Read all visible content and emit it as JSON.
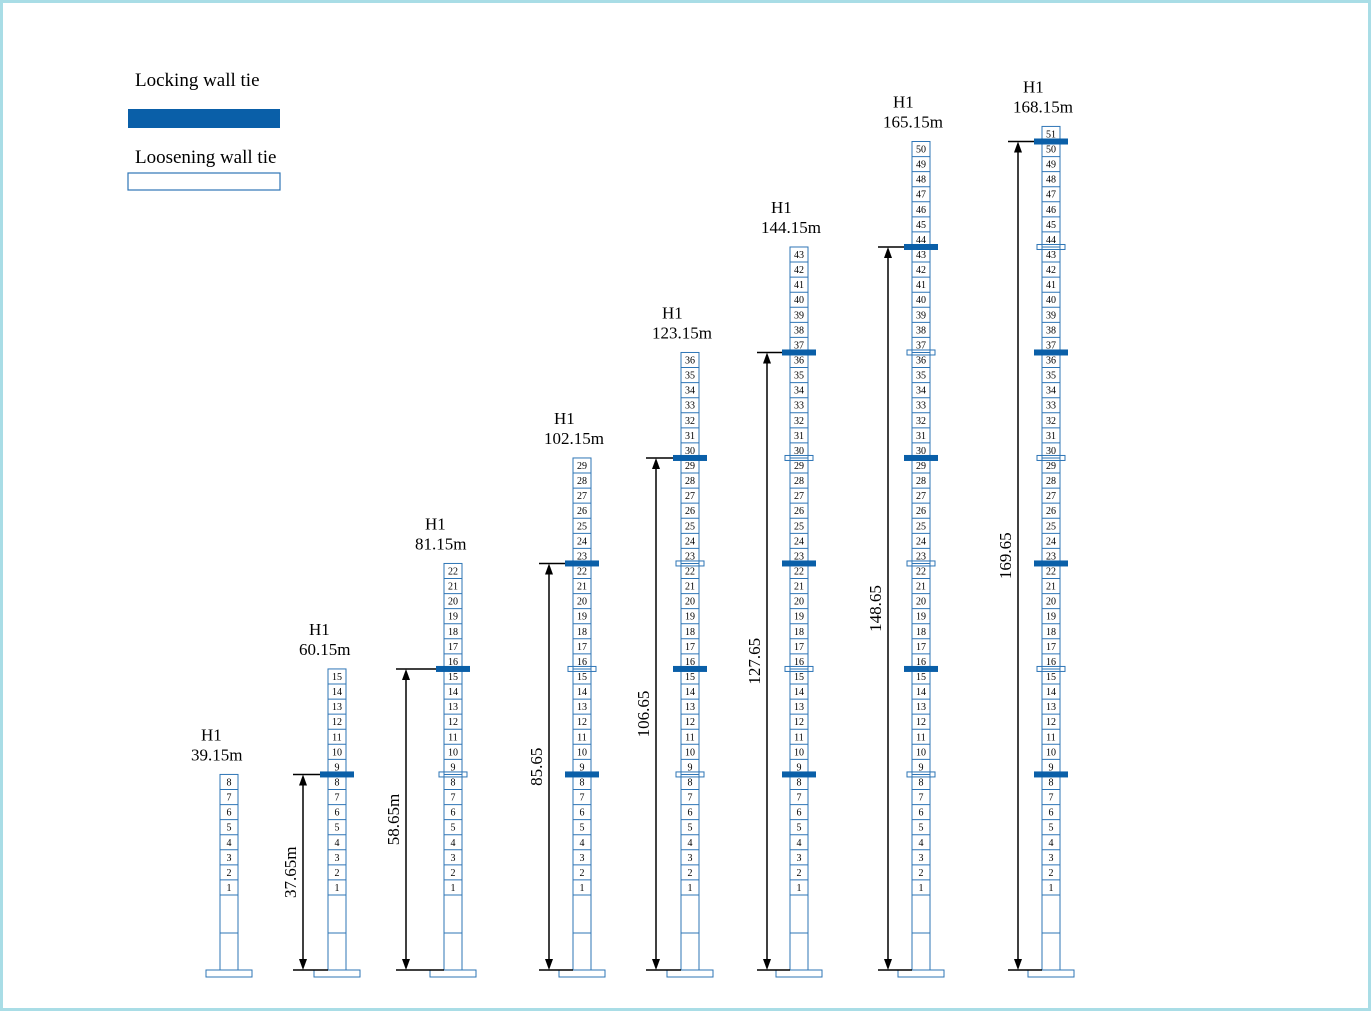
{
  "legend": {
    "locking_label": "Locking wall tie",
    "loosening_label": "Loosening wall tie",
    "locking_color": "#0a5fa8",
    "loosening_color": "#2e75b6"
  },
  "colors": {
    "mast_line": "#2e75b6",
    "dimension_line": "#000000"
  },
  "masts": [
    {
      "h_label": "H1",
      "height_label": "39.15m",
      "segments": 8,
      "locking": [],
      "loosening": [],
      "dim_label": ""
    },
    {
      "h_label": "H1",
      "height_label": "60.15m",
      "segments": 15,
      "locking": [
        8
      ],
      "loosening": [],
      "dim_label": "37.65m"
    },
    {
      "h_label": "H1",
      "height_label": "81.15m",
      "segments": 22,
      "locking": [
        15
      ],
      "loosening": [
        8
      ],
      "dim_label": "58.65m"
    },
    {
      "h_label": "H1",
      "height_label": "102.15m",
      "segments": 29,
      "locking": [
        8,
        22
      ],
      "loosening": [
        15
      ],
      "dim_label": "85.65"
    },
    {
      "h_label": "H1",
      "height_label": "123.15m",
      "segments": 36,
      "locking": [
        15,
        29
      ],
      "loosening": [
        8,
        22
      ],
      "dim_label": "106.65"
    },
    {
      "h_label": "H1",
      "height_label": "144.15m",
      "segments": 43,
      "locking": [
        8,
        22,
        36
      ],
      "loosening": [
        15,
        29
      ],
      "dim_label": "127.65"
    },
    {
      "h_label": "H1",
      "height_label": "165.15m",
      "segments": 50,
      "locking": [
        15,
        29,
        43
      ],
      "loosening": [
        8,
        22,
        36
      ],
      "dim_label": "148.65"
    },
    {
      "h_label": "H1",
      "height_label": "168.15m",
      "segments": 51,
      "locking": [
        8,
        22,
        36,
        50
      ],
      "loosening": [
        15,
        29,
        43
      ],
      "dim_label": "169.65"
    }
  ]
}
